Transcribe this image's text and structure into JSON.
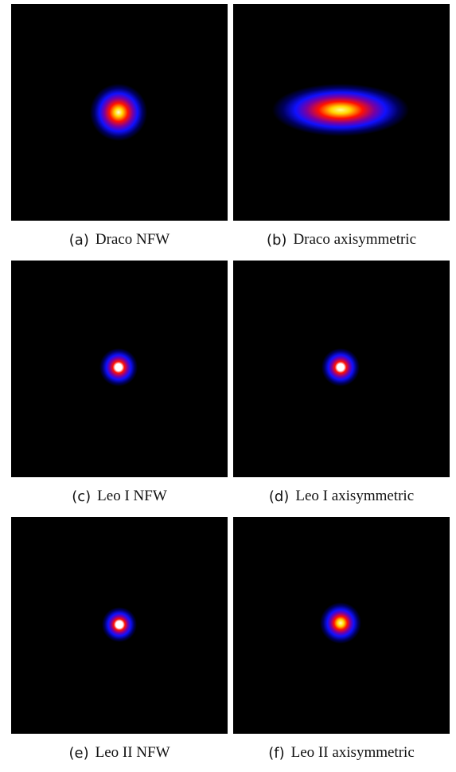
{
  "figure": {
    "panels": [
      {
        "tag": "(a)",
        "label": "Draco NFW",
        "blob": {
          "shape": "round",
          "intensity": "broad"
        }
      },
      {
        "tag": "(b)",
        "label": "Draco axisymmetric",
        "blob": {
          "shape": "elongated-horizontal",
          "intensity": "broad"
        }
      },
      {
        "tag": "(c)",
        "label": "Leo I NFW",
        "blob": {
          "shape": "round",
          "intensity": "compact"
        }
      },
      {
        "tag": "(d)",
        "label": "Leo I axisymmetric",
        "blob": {
          "shape": "round",
          "intensity": "compact"
        }
      },
      {
        "tag": "(e)",
        "label": "Leo II NFW",
        "blob": {
          "shape": "round",
          "intensity": "compact"
        }
      },
      {
        "tag": "(f)",
        "label": "Leo II axisymmetric",
        "blob": {
          "shape": "round",
          "intensity": "compact"
        }
      }
    ],
    "colormap": [
      "#000000",
      "#0000ff",
      "#ff0000",
      "#ffff00",
      "#ffffff"
    ]
  }
}
